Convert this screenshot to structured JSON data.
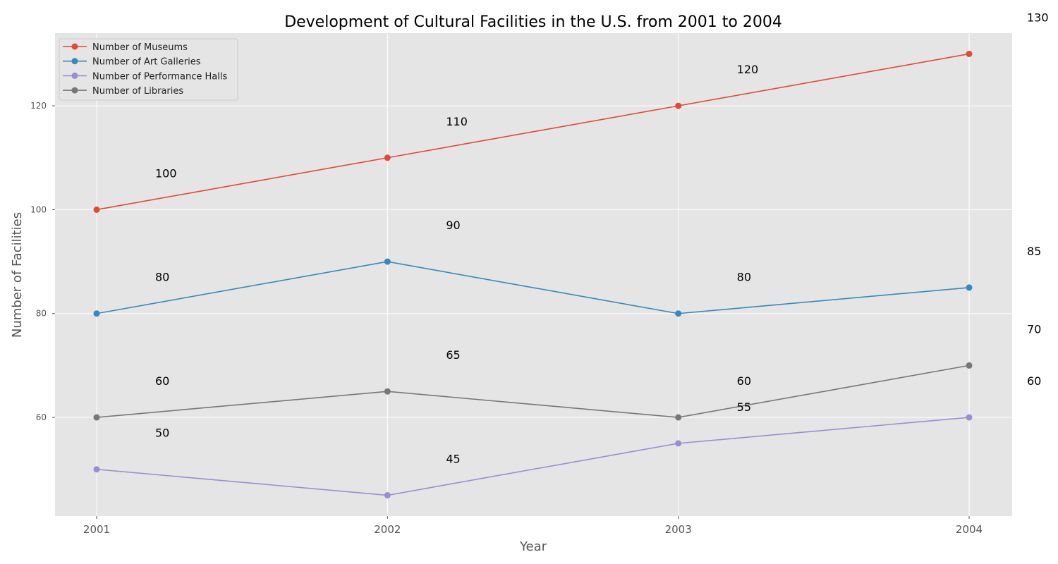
{
  "chart_data": {
    "type": "line",
    "title": "Development of Cultural Facilities in the U.S. from 2001 to 2004",
    "xlabel": "Year",
    "ylabel": "Number of Facilities",
    "categories": [
      "2001",
      "2002",
      "2003",
      "2004"
    ],
    "ylim": [
      41,
      134
    ],
    "yticks": [
      60,
      80,
      100,
      120
    ],
    "grid": true,
    "legend_position": "top-left",
    "series": [
      {
        "name": "Number of Museums",
        "color": "#E24A33",
        "values": [
          100,
          110,
          120,
          130
        ]
      },
      {
        "name": "Number of Art Galleries",
        "color": "#348ABD",
        "values": [
          80,
          90,
          80,
          85
        ]
      },
      {
        "name": "Number of Performance Halls",
        "color": "#988ED5",
        "values": [
          50,
          45,
          55,
          60
        ]
      },
      {
        "name": "Number of Libraries",
        "color": "#777777",
        "values": [
          60,
          65,
          60,
          70
        ]
      }
    ]
  }
}
